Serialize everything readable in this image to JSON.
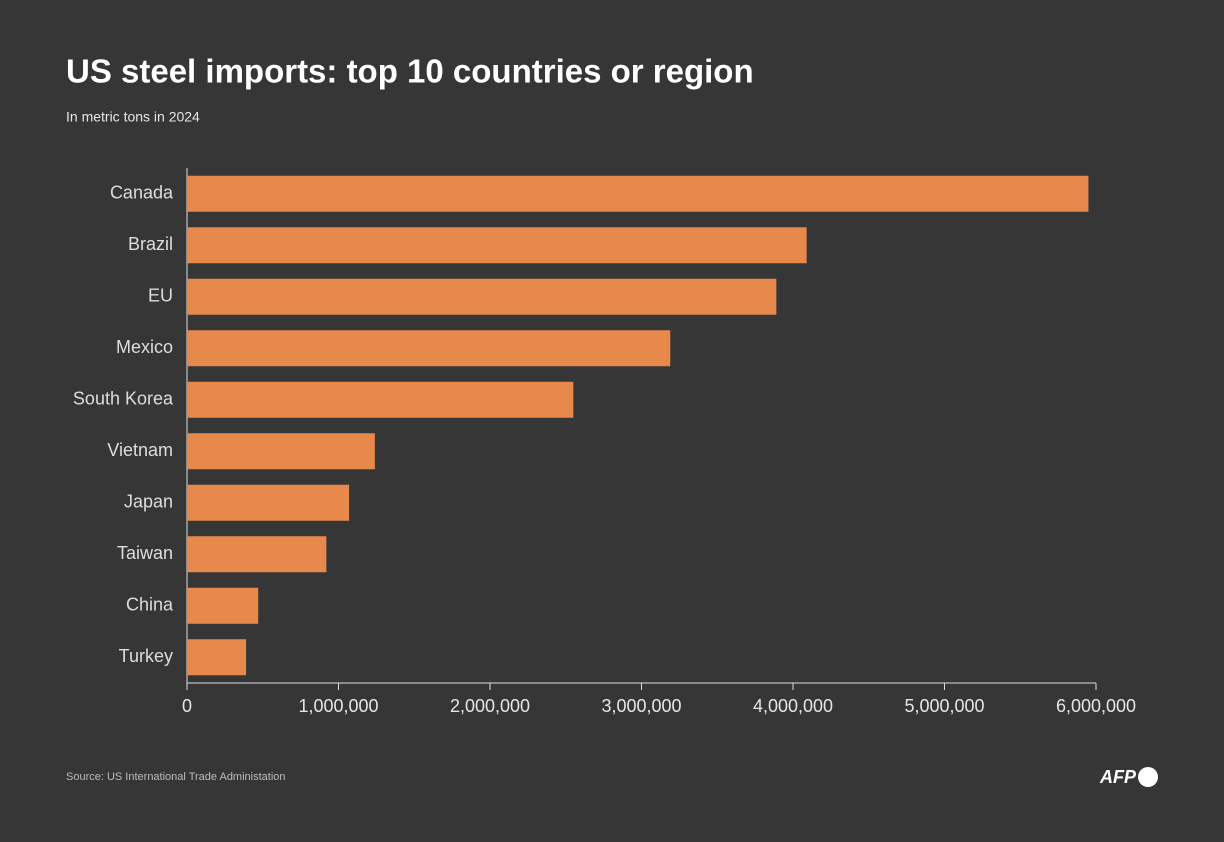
{
  "chart_data": {
    "type": "bar",
    "orientation": "horizontal",
    "title": "US steel imports: top 10 countries or region",
    "subtitle": "In metric tons in 2024",
    "source": "Source: US International Trade Administation",
    "logo": "AFP",
    "categories": [
      "Canada",
      "Brazil",
      "EU",
      "Mexico",
      "South Korea",
      "Vietnam",
      "Japan",
      "Taiwan",
      "China",
      "Turkey"
    ],
    "values": [
      5950000,
      4090000,
      3890000,
      3190000,
      2550000,
      1240000,
      1070000,
      920000,
      470000,
      390000
    ],
    "color": "#e8894c",
    "xlim": [
      0,
      6000000
    ],
    "xticks": [
      0,
      {
        "value": 1000000,
        "label": "1,000,000"
      },
      {
        "value": 2000000,
        "label": "2,000,000"
      },
      {
        "value": 3000000,
        "label": "3,000,000"
      },
      {
        "value": 4000000,
        "label": "4,000,000"
      },
      {
        "value": 5000000,
        "label": "5,000,000"
      },
      {
        "value": 6000000,
        "label": "6,000,000"
      }
    ],
    "grid": false
  }
}
